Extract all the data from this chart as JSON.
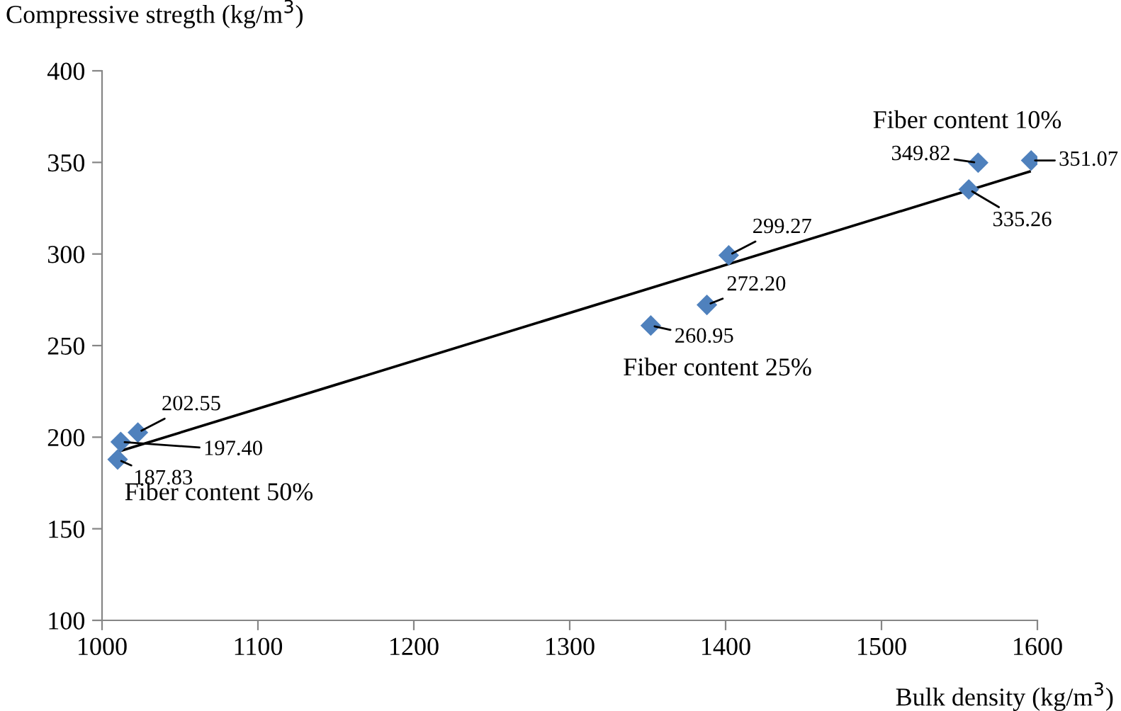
{
  "chart_data": {
    "type": "scatter",
    "xlabel": "Bulk density (kg/m$^{3}$)",
    "ylabel": "Compressive stregth (kg/m$^{3}$)",
    "xlim": [
      1000,
      1600
    ],
    "xticks": [
      1000,
      1100,
      1200,
      1300,
      1400,
      1500,
      1600
    ],
    "ylim": [
      100,
      400
    ],
    "yticks": [
      100,
      150,
      200,
      250,
      300,
      350,
      400
    ],
    "grid": false,
    "series": [
      {
        "marker": "diamond",
        "color": "#4f81bd",
        "x": [
          1023,
          1012,
          1010,
          1402,
          1388,
          1352,
          1562,
          1596,
          1556
        ],
        "values": [
          202.55,
          197.4,
          187.83,
          299.27,
          272.2,
          260.95,
          349.82,
          351.07,
          335.26
        ],
        "value_labels": [
          "202.55",
          "197.40",
          "187.83",
          "299.27",
          "272.20",
          "260.95",
          "349.82",
          "351.07",
          "335.26"
        ]
      },
      {
        "type": "line",
        "color": "#000000",
        "x": [
          1010,
          1595
        ],
        "values": [
          192,
          345
        ]
      }
    ],
    "annotations": [
      "Fiber content 10%",
      "Fiber content 25%",
      "Fiber content 50%"
    ]
  }
}
